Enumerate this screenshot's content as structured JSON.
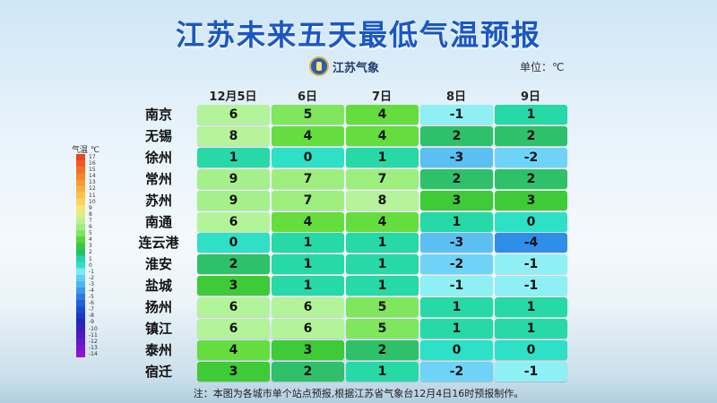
{
  "title": "江苏未来五天最低气温预报",
  "logo_text": "江苏气象",
  "unit_label": "单位：℃",
  "legend_header": "气温 ℃",
  "legend_labels": [
    "17",
    "16",
    "15",
    "14",
    "13",
    "12",
    "11",
    "10",
    "9",
    "8",
    "7",
    "6",
    "5",
    "4",
    "3",
    "2",
    "1",
    "0",
    "-1",
    "-2",
    "-3",
    "-4",
    "-5",
    "-6",
    "-7",
    "-8",
    "-9",
    "-10",
    "-11",
    "-12",
    "-13",
    "-14"
  ],
  "footnote": "注：本图为各城市单个站点预报,根据江苏省气象台12月4日16时预报制作。",
  "chart_data": {
    "type": "table",
    "days": [
      "12月5日",
      "6日",
      "7日",
      "8日",
      "9日"
    ],
    "cities": [
      "南京",
      "无锡",
      "徐州",
      "常州",
      "苏州",
      "南通",
      "连云港",
      "淮安",
      "盐城",
      "扬州",
      "镇江",
      "泰州",
      "宿迁"
    ],
    "values": [
      [
        6,
        5,
        4,
        -1,
        1
      ],
      [
        8,
        4,
        4,
        2,
        2
      ],
      [
        1,
        0,
        1,
        -3,
        -2
      ],
      [
        9,
        7,
        7,
        2,
        2
      ],
      [
        9,
        7,
        8,
        3,
        3
      ],
      [
        6,
        4,
        4,
        1,
        0
      ],
      [
        0,
        1,
        1,
        -3,
        -4
      ],
      [
        2,
        1,
        1,
        -2,
        -1
      ],
      [
        3,
        1,
        1,
        -1,
        -1
      ],
      [
        6,
        6,
        5,
        1,
        1
      ],
      [
        6,
        6,
        5,
        1,
        1
      ],
      [
        4,
        3,
        2,
        0,
        0
      ],
      [
        3,
        2,
        1,
        -2,
        -1
      ]
    ],
    "color_scale": {
      "9": "#a6f08c",
      "8": "#b6f39a",
      "7": "#9eee7e",
      "6": "#b3f49a",
      "5": "#7fe65e",
      "4": "#66dd3f",
      "3": "#3fca38",
      "2": "#2fc06a",
      "1": "#26d9a6",
      "0": "#2ee0c6",
      "-1": "#8ef0f4",
      "-2": "#6fd3f7",
      "-3": "#5cbff2",
      "-4": "#2f8fe8"
    }
  }
}
